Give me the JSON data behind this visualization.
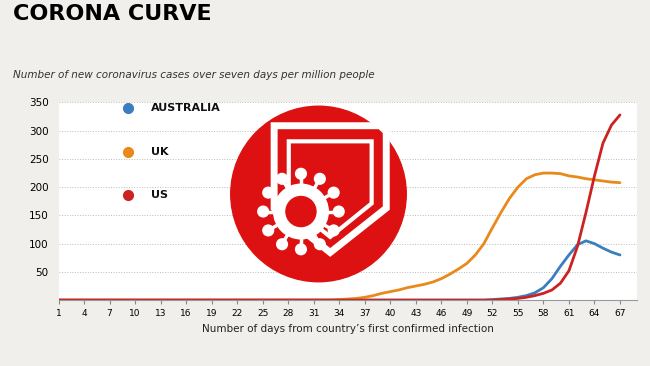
{
  "title": "CORONA CURVE",
  "subtitle": "Number of new coronavirus cases over seven days per million people",
  "xlabel": "Number of days from country’s first confirmed infection",
  "ylim": [
    0,
    350
  ],
  "yticks": [
    0,
    50,
    100,
    150,
    200,
    250,
    300,
    350
  ],
  "xticks": [
    1,
    4,
    7,
    10,
    13,
    16,
    19,
    22,
    25,
    28,
    31,
    34,
    37,
    40,
    43,
    46,
    49,
    52,
    55,
    58,
    61,
    64,
    67
  ],
  "xlim": [
    1,
    69
  ],
  "background_color": "#f0efeb",
  "plot_bg_color": "#ffffff",
  "grid_color": "#bbbbbb",
  "title_color": "#000000",
  "series": [
    {
      "label": "AUSTRALIA",
      "color": "#3a7ebf",
      "x": [
        1,
        2,
        3,
        4,
        5,
        6,
        7,
        8,
        9,
        10,
        11,
        12,
        13,
        14,
        15,
        16,
        17,
        18,
        19,
        20,
        21,
        22,
        23,
        24,
        25,
        26,
        27,
        28,
        29,
        30,
        31,
        32,
        33,
        34,
        35,
        36,
        37,
        38,
        39,
        40,
        41,
        42,
        43,
        44,
        45,
        46,
        47,
        48,
        49,
        50,
        51,
        52,
        53,
        54,
        55,
        56,
        57,
        58,
        59,
        60,
        61,
        62,
        63,
        64,
        65,
        66,
        67
      ],
      "y": [
        0,
        0,
        0,
        0,
        0,
        0,
        0,
        0,
        0,
        0,
        0,
        0,
        0,
        0,
        0,
        0,
        0,
        0,
        0,
        0,
        0,
        0,
        0,
        0,
        0,
        0,
        0,
        0,
        0,
        0,
        0,
        0,
        0,
        0,
        0,
        0,
        0,
        0,
        0,
        0,
        0,
        0,
        0,
        0,
        0,
        0,
        0,
        0,
        0,
        0,
        0,
        1,
        2,
        3,
        5,
        8,
        13,
        22,
        38,
        60,
        80,
        98,
        105,
        100,
        92,
        85,
        80
      ]
    },
    {
      "label": "UK",
      "color": "#e8891a",
      "x": [
        1,
        2,
        3,
        4,
        5,
        6,
        7,
        8,
        9,
        10,
        11,
        12,
        13,
        14,
        15,
        16,
        17,
        18,
        19,
        20,
        21,
        22,
        23,
        24,
        25,
        26,
        27,
        28,
        29,
        30,
        31,
        32,
        33,
        34,
        35,
        36,
        37,
        38,
        39,
        40,
        41,
        42,
        43,
        44,
        45,
        46,
        47,
        48,
        49,
        50,
        51,
        52,
        53,
        54,
        55,
        56,
        57,
        58,
        59,
        60,
        61,
        62,
        63,
        64,
        65,
        66,
        67
      ],
      "y": [
        0,
        0,
        0,
        0,
        0,
        0,
        0,
        0,
        0,
        0,
        0,
        0,
        0,
        0,
        0,
        0,
        0,
        0,
        0,
        0,
        0,
        0,
        0,
        0,
        0,
        0,
        0,
        0,
        0,
        0,
        0,
        0,
        0,
        1,
        2,
        3,
        5,
        8,
        12,
        15,
        18,
        22,
        25,
        28,
        32,
        38,
        46,
        55,
        65,
        80,
        100,
        128,
        155,
        180,
        200,
        215,
        222,
        225,
        225,
        224,
        220,
        218,
        215,
        213,
        211,
        209,
        208
      ]
    },
    {
      "label": "US",
      "color": "#cc2222",
      "x": [
        1,
        2,
        3,
        4,
        5,
        6,
        7,
        8,
        9,
        10,
        11,
        12,
        13,
        14,
        15,
        16,
        17,
        18,
        19,
        20,
        21,
        22,
        23,
        24,
        25,
        26,
        27,
        28,
        29,
        30,
        31,
        32,
        33,
        34,
        35,
        36,
        37,
        38,
        39,
        40,
        41,
        42,
        43,
        44,
        45,
        46,
        47,
        48,
        49,
        50,
        51,
        52,
        53,
        54,
        55,
        56,
        57,
        58,
        59,
        60,
        61,
        62,
        63,
        64,
        65,
        66,
        67
      ],
      "y": [
        0,
        0,
        0,
        0,
        0,
        0,
        0,
        0,
        0,
        0,
        0,
        0,
        0,
        0,
        0,
        0,
        0,
        0,
        0,
        0,
        0,
        0,
        0,
        0,
        0,
        0,
        0,
        0,
        0,
        0,
        0,
        0,
        0,
        0,
        0,
        0,
        0,
        0,
        0,
        0,
        0,
        0,
        0,
        0,
        0,
        0,
        0,
        0,
        0,
        0,
        0,
        0,
        1,
        2,
        3,
        5,
        8,
        12,
        18,
        30,
        52,
        95,
        155,
        220,
        278,
        310,
        328
      ]
    }
  ],
  "legend": [
    {
      "label": "AUSTRALIA",
      "color": "#3a7ebf"
    },
    {
      "label": "UK",
      "color": "#e8891a"
    },
    {
      "label": "US",
      "color": "#cc2222"
    }
  ],
  "shield_color": "#dd1111"
}
